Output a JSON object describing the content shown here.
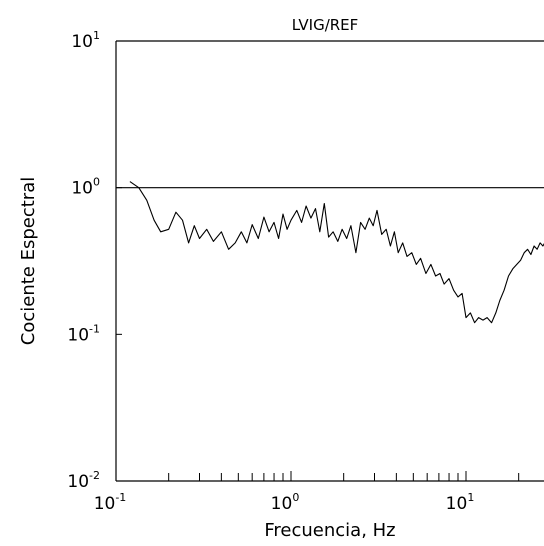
{
  "chart_data": {
    "type": "line",
    "title": "LVIG/REF",
    "xlabel": "Frecuencia, Hz",
    "ylabel": "Cociente Espectral",
    "x_scale": "log",
    "y_scale": "log",
    "xlim": [
      0.1,
      30
    ],
    "ylim": [
      0.01,
      10
    ],
    "grid": false,
    "reference_line": 1.0,
    "x_ticks": [
      {
        "base": "10",
        "exp": "-1"
      },
      {
        "base": "10",
        "exp": "0"
      },
      {
        "base": "10",
        "exp": "1"
      }
    ],
    "y_ticks": [
      {
        "base": "10",
        "exp": "-2"
      },
      {
        "base": "10",
        "exp": "-1"
      },
      {
        "base": "10",
        "exp": "0"
      },
      {
        "base": "10",
        "exp": "1"
      }
    ],
    "series": [
      {
        "color": "#000000",
        "x": [
          0.12,
          0.135,
          0.15,
          0.165,
          0.18,
          0.2,
          0.22,
          0.24,
          0.26,
          0.28,
          0.3,
          0.33,
          0.36,
          0.4,
          0.44,
          0.48,
          0.52,
          0.56,
          0.6,
          0.65,
          0.7,
          0.75,
          0.8,
          0.85,
          0.9,
          0.95,
          1.0,
          1.08,
          1.15,
          1.22,
          1.3,
          1.38,
          1.46,
          1.55,
          1.64,
          1.74,
          1.85,
          1.96,
          2.08,
          2.2,
          2.35,
          2.5,
          2.65,
          2.8,
          2.95,
          3.1,
          3.3,
          3.5,
          3.7,
          3.9,
          4.1,
          4.35,
          4.6,
          4.9,
          5.2,
          5.5,
          5.9,
          6.3,
          6.7,
          7.1,
          7.5,
          8.0,
          8.5,
          9.0,
          9.5,
          10.0,
          10.6,
          11.2,
          11.8,
          12.5,
          13.2,
          14.0,
          14.8,
          15.6,
          16.5,
          17.5,
          18.5,
          19.5,
          20.5,
          21.5,
          22.5,
          23.5,
          24.5,
          25.5,
          26.5,
          27.5,
          28.5,
          29.5
        ],
        "y": [
          1.1,
          1.0,
          0.82,
          0.6,
          0.5,
          0.52,
          0.68,
          0.6,
          0.42,
          0.55,
          0.45,
          0.52,
          0.43,
          0.5,
          0.38,
          0.42,
          0.5,
          0.42,
          0.56,
          0.45,
          0.63,
          0.5,
          0.58,
          0.45,
          0.66,
          0.52,
          0.6,
          0.7,
          0.58,
          0.75,
          0.62,
          0.72,
          0.5,
          0.78,
          0.46,
          0.5,
          0.43,
          0.52,
          0.45,
          0.55,
          0.36,
          0.58,
          0.52,
          0.62,
          0.55,
          0.7,
          0.48,
          0.52,
          0.4,
          0.5,
          0.36,
          0.42,
          0.34,
          0.36,
          0.3,
          0.33,
          0.26,
          0.3,
          0.25,
          0.26,
          0.22,
          0.24,
          0.2,
          0.18,
          0.19,
          0.13,
          0.14,
          0.12,
          0.13,
          0.125,
          0.13,
          0.12,
          0.14,
          0.17,
          0.2,
          0.25,
          0.28,
          0.3,
          0.32,
          0.36,
          0.38,
          0.35,
          0.4,
          0.38,
          0.42,
          0.4,
          0.43,
          0.42
        ]
      }
    ]
  }
}
